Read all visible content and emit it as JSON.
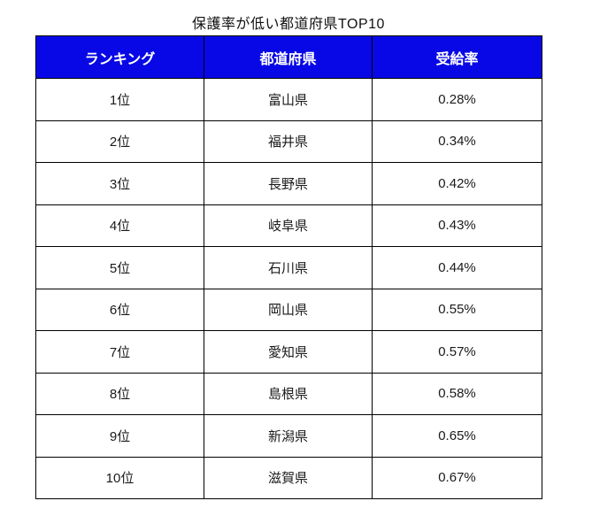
{
  "title": "保護率が低い都道府県TOP10",
  "colors": {
    "header_bg": "#0808e6",
    "header_text": "#ffffff",
    "border": "#000000",
    "body_text": "#1a1a1a"
  },
  "table": {
    "headers": [
      "ランキング",
      "都道府県",
      "受給率"
    ],
    "rows": [
      {
        "rank": "1位",
        "prefecture": "富山県",
        "rate": "0.28%"
      },
      {
        "rank": "2位",
        "prefecture": "福井県",
        "rate": "0.34%"
      },
      {
        "rank": "3位",
        "prefecture": "長野県",
        "rate": "0.42%"
      },
      {
        "rank": "4位",
        "prefecture": "岐阜県",
        "rate": "0.43%"
      },
      {
        "rank": "5位",
        "prefecture": "石川県",
        "rate": "0.44%"
      },
      {
        "rank": "6位",
        "prefecture": "岡山県",
        "rate": "0.55%"
      },
      {
        "rank": "7位",
        "prefecture": "愛知県",
        "rate": "0.57%"
      },
      {
        "rank": "8位",
        "prefecture": "島根県",
        "rate": "0.58%"
      },
      {
        "rank": "9位",
        "prefecture": "新潟県",
        "rate": "0.65%"
      },
      {
        "rank": "10位",
        "prefecture": "滋賀県",
        "rate": "0.67%"
      }
    ]
  },
  "chart_data": {
    "type": "table",
    "title": "保護率が低い都道府県TOP10",
    "columns": [
      "ランキング",
      "都道府県",
      "受給率"
    ],
    "categories": [
      "富山県",
      "福井県",
      "長野県",
      "岐阜県",
      "石川県",
      "岡山県",
      "愛知県",
      "島根県",
      "新潟県",
      "滋賀県"
    ],
    "ranks": [
      1,
      2,
      3,
      4,
      5,
      6,
      7,
      8,
      9,
      10
    ],
    "values_percent": [
      0.28,
      0.34,
      0.42,
      0.43,
      0.44,
      0.55,
      0.57,
      0.58,
      0.65,
      0.67
    ]
  }
}
